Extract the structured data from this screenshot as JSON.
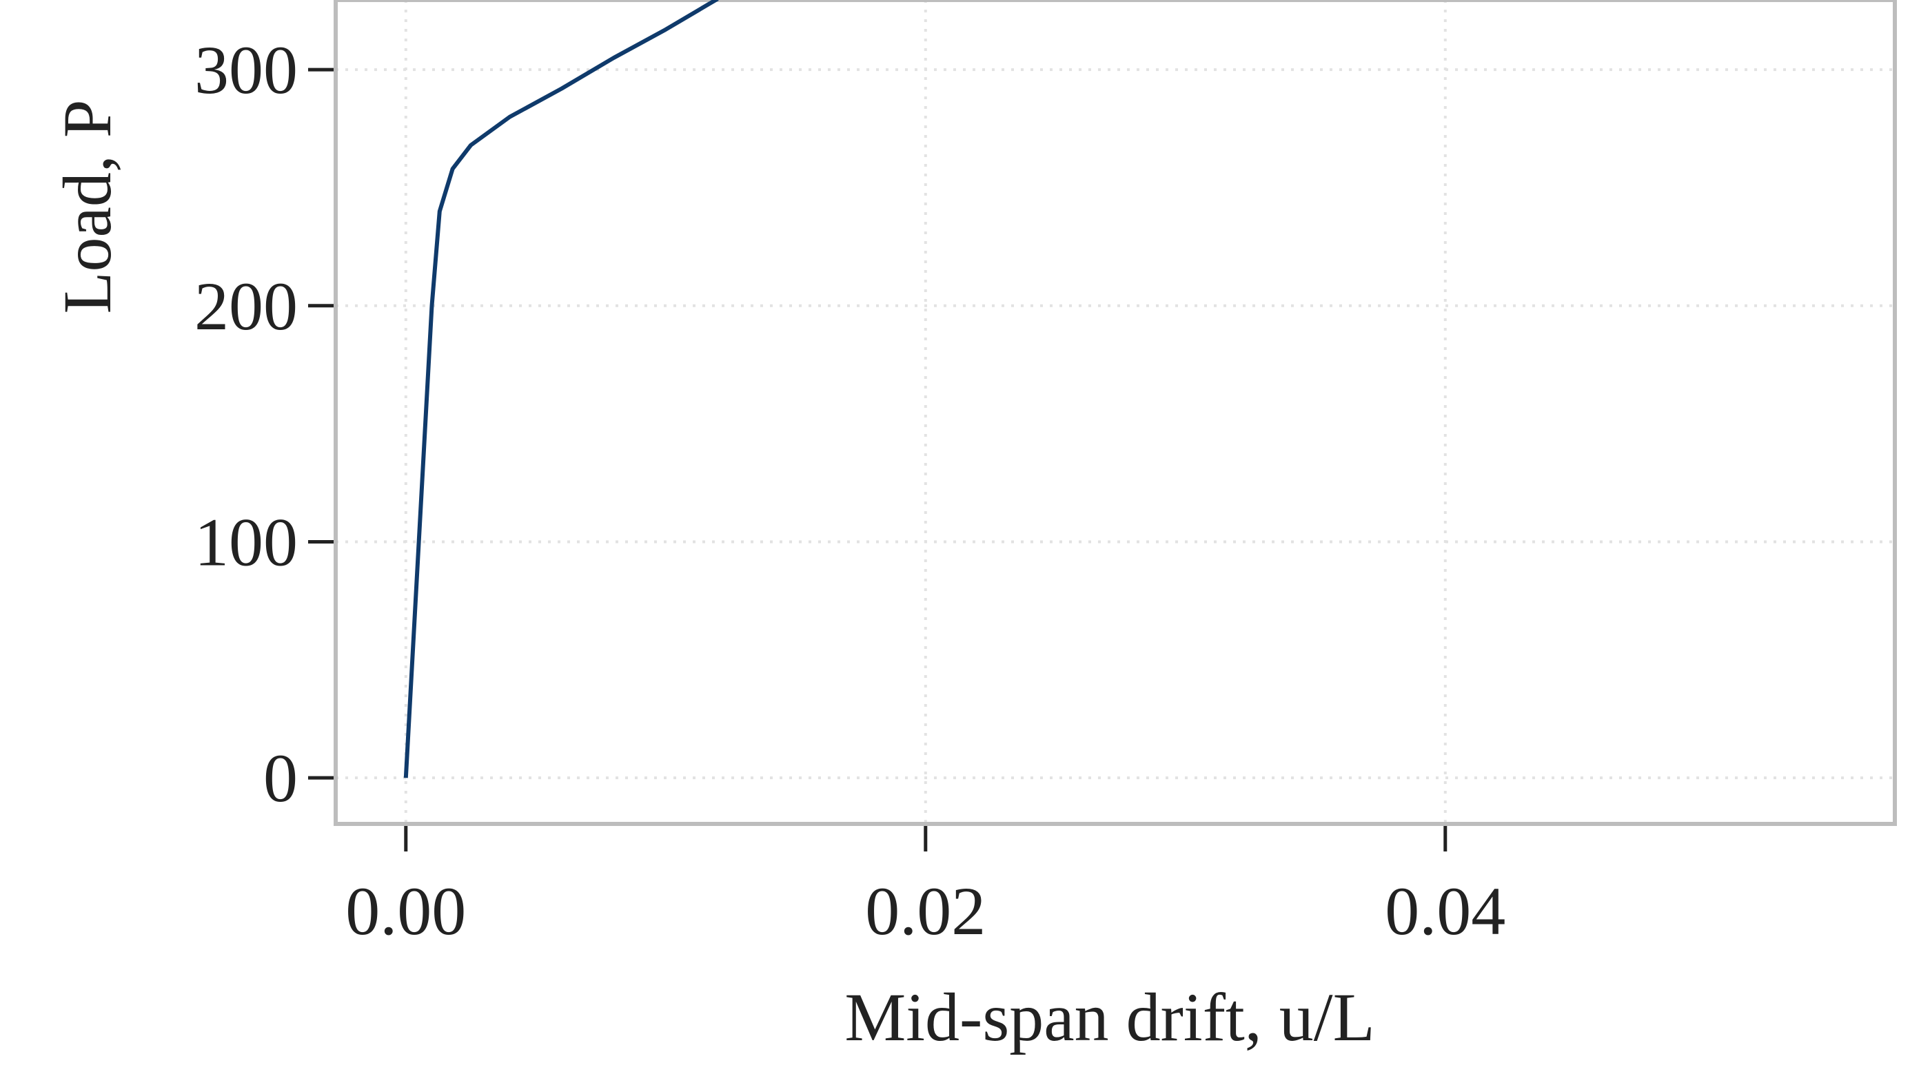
{
  "chart_data": {
    "type": "line",
    "x_label": "Mid-span drift, u/L",
    "y_label": "Load, P",
    "series": [
      {
        "color": "#0f3a6b",
        "x": [
          0,
          0.0005,
          0.0008,
          0.001,
          0.0013,
          0.0018,
          0.0025,
          0.004,
          0.006,
          0.008,
          0.01,
          0.012
        ],
        "values": [
          0,
          100,
          160,
          200,
          240,
          258,
          268,
          280,
          292,
          305,
          317,
          330
        ]
      }
    ],
    "xlim": [
      -0.0027,
      0.0573
    ],
    "ylim": [
      -19.5,
      329.5
    ],
    "xticks": [
      {
        "value": 0,
        "label": "0.00"
      },
      0.02,
      0.04
    ],
    "yticks": [
      0,
      100,
      200,
      300
    ],
    "grid": true
  }
}
